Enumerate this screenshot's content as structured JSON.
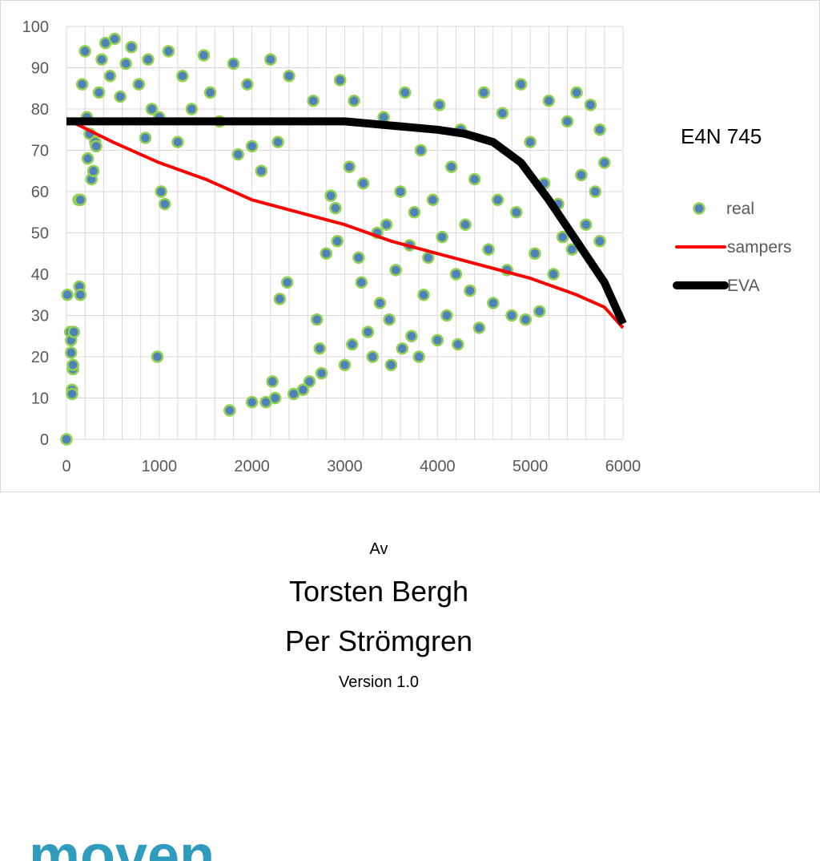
{
  "chart_data": {
    "type": "scatter",
    "title": "E4N 745",
    "xlabel": "",
    "ylabel": "",
    "xlim": [
      0,
      6000
    ],
    "ylim": [
      0,
      100
    ],
    "x_ticks": [
      "0",
      "1000",
      "2000",
      "3000",
      "4000",
      "5000",
      "6000"
    ],
    "y_ticks": [
      "0",
      "10",
      "20",
      "30",
      "40",
      "50",
      "60",
      "70",
      "80",
      "90",
      "100"
    ],
    "grid": true,
    "legend_position": "right",
    "series": [
      {
        "name": "real",
        "kind": "scatter",
        "fill": "#4f81bd",
        "stroke": "#92d050",
        "points": [
          [
            0,
            0
          ],
          [
            10,
            35
          ],
          [
            40,
            26
          ],
          [
            50,
            24
          ],
          [
            50,
            21
          ],
          [
            60,
            12
          ],
          [
            60,
            11
          ],
          [
            70,
            17
          ],
          [
            70,
            18
          ],
          [
            80,
            26
          ],
          [
            130,
            58
          ],
          [
            140,
            37
          ],
          [
            150,
            35
          ],
          [
            150,
            58
          ],
          [
            170,
            86
          ],
          [
            200,
            94
          ],
          [
            220,
            78
          ],
          [
            230,
            68
          ],
          [
            250,
            74
          ],
          [
            270,
            63
          ],
          [
            290,
            65
          ],
          [
            310,
            72
          ],
          [
            320,
            71
          ],
          [
            350,
            84
          ],
          [
            380,
            92
          ],
          [
            420,
            96
          ],
          [
            470,
            88
          ],
          [
            520,
            97
          ],
          [
            580,
            83
          ],
          [
            640,
            91
          ],
          [
            700,
            95
          ],
          [
            780,
            86
          ],
          [
            850,
            73
          ],
          [
            880,
            92
          ],
          [
            920,
            80
          ],
          [
            980,
            20
          ],
          [
            1000,
            78
          ],
          [
            1020,
            60
          ],
          [
            1060,
            57
          ],
          [
            1100,
            94
          ],
          [
            1200,
            72
          ],
          [
            1250,
            88
          ],
          [
            1350,
            80
          ],
          [
            1480,
            93
          ],
          [
            1550,
            84
          ],
          [
            1650,
            77
          ],
          [
            1760,
            7
          ],
          [
            1800,
            91
          ],
          [
            1850,
            69
          ],
          [
            1950,
            86
          ],
          [
            2000,
            9
          ],
          [
            2000,
            71
          ],
          [
            2100,
            65
          ],
          [
            2150,
            9
          ],
          [
            2200,
            92
          ],
          [
            2220,
            14
          ],
          [
            2250,
            10
          ],
          [
            2280,
            72
          ],
          [
            2300,
            34
          ],
          [
            2380,
            38
          ],
          [
            2400,
            88
          ],
          [
            2450,
            11
          ],
          [
            2550,
            12
          ],
          [
            2620,
            14
          ],
          [
            2660,
            82
          ],
          [
            2700,
            29
          ],
          [
            2730,
            22
          ],
          [
            2750,
            16
          ],
          [
            2800,
            45
          ],
          [
            2850,
            59
          ],
          [
            2900,
            56
          ],
          [
            2920,
            48
          ],
          [
            2950,
            87
          ],
          [
            3000,
            18
          ],
          [
            3050,
            66
          ],
          [
            3080,
            23
          ],
          [
            3100,
            82
          ],
          [
            3150,
            44
          ],
          [
            3180,
            38
          ],
          [
            3200,
            62
          ],
          [
            3250,
            26
          ],
          [
            3300,
            20
          ],
          [
            3350,
            50
          ],
          [
            3380,
            33
          ],
          [
            3420,
            78
          ],
          [
            3450,
            52
          ],
          [
            3480,
            29
          ],
          [
            3500,
            18
          ],
          [
            3550,
            41
          ],
          [
            3600,
            60
          ],
          [
            3620,
            22
          ],
          [
            3650,
            84
          ],
          [
            3700,
            47
          ],
          [
            3720,
            25
          ],
          [
            3750,
            55
          ],
          [
            3800,
            20
          ],
          [
            3820,
            70
          ],
          [
            3850,
            35
          ],
          [
            3900,
            44
          ],
          [
            3950,
            58
          ],
          [
            4000,
            24
          ],
          [
            4020,
            81
          ],
          [
            4050,
            49
          ],
          [
            4100,
            30
          ],
          [
            4150,
            66
          ],
          [
            4200,
            40
          ],
          [
            4220,
            23
          ],
          [
            4250,
            75
          ],
          [
            4300,
            52
          ],
          [
            4350,
            36
          ],
          [
            4400,
            63
          ],
          [
            4450,
            27
          ],
          [
            4500,
            84
          ],
          [
            4550,
            46
          ],
          [
            4600,
            33
          ],
          [
            4650,
            58
          ],
          [
            4700,
            79
          ],
          [
            4750,
            41
          ],
          [
            4800,
            30
          ],
          [
            4850,
            55
          ],
          [
            4900,
            86
          ],
          [
            4950,
            29
          ],
          [
            5000,
            72
          ],
          [
            5050,
            45
          ],
          [
            5100,
            31
          ],
          [
            5150,
            62
          ],
          [
            5200,
            82
          ],
          [
            5250,
            40
          ],
          [
            5300,
            57
          ],
          [
            5350,
            49
          ],
          [
            5400,
            77
          ],
          [
            5450,
            46
          ],
          [
            5500,
            84
          ],
          [
            5550,
            64
          ],
          [
            5600,
            52
          ],
          [
            5650,
            81
          ],
          [
            5700,
            60
          ],
          [
            5750,
            75
          ],
          [
            5800,
            67
          ],
          [
            5750,
            48
          ]
        ]
      },
      {
        "name": "sampers",
        "kind": "line",
        "color": "#ff0000",
        "points": [
          [
            50,
            77
          ],
          [
            500,
            72
          ],
          [
            1000,
            67
          ],
          [
            1500,
            63
          ],
          [
            2000,
            58
          ],
          [
            2500,
            55
          ],
          [
            3000,
            52
          ],
          [
            3500,
            48
          ],
          [
            4000,
            45
          ],
          [
            4500,
            42
          ],
          [
            5000,
            39
          ],
          [
            5500,
            35
          ],
          [
            5800,
            32
          ],
          [
            6000,
            27
          ]
        ]
      },
      {
        "name": "EVA",
        "kind": "line",
        "color": "#000000",
        "points": [
          [
            0,
            77
          ],
          [
            3000,
            77
          ],
          [
            3500,
            76
          ],
          [
            4000,
            75
          ],
          [
            4300,
            74
          ],
          [
            4600,
            72
          ],
          [
            4900,
            67
          ],
          [
            5200,
            58
          ],
          [
            5500,
            48
          ],
          [
            5800,
            38
          ],
          [
            6000,
            28
          ]
        ]
      }
    ]
  },
  "document": {
    "by_label": "Av",
    "author_1": "Torsten Bergh",
    "author_2": "Per Strömgren",
    "version": "Version 1.0",
    "logo_text": "moven"
  },
  "colors": {
    "grid": "#d9d9d9",
    "axis_text": "#595959",
    "logo": "#2f9bbd"
  }
}
